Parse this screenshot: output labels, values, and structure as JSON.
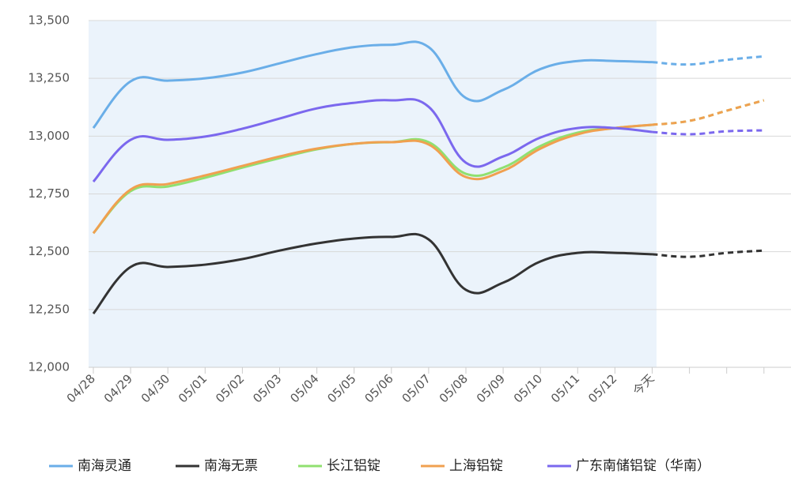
{
  "chart_data": {
    "type": "line",
    "categories": [
      "04/28",
      "04/29",
      "04/30",
      "05/01",
      "05/02",
      "05/03",
      "05/04",
      "05/05",
      "05/06",
      "05/07",
      "05/08",
      "05/09",
      "05/10",
      "05/11",
      "05/12",
      "今天",
      null,
      null,
      null
    ],
    "dashed_from_index": 15,
    "series": [
      {
        "name": "南海灵通",
        "color": "#6aaee8",
        "values": [
          13035,
          13237,
          13240,
          13250,
          13275,
          13315,
          13355,
          13385,
          13395,
          13385,
          13165,
          13200,
          13290,
          13325,
          13325,
          13320,
          13310,
          13330,
          13345
        ]
      },
      {
        "name": "南海无票",
        "color": "#333333",
        "values": [
          12232,
          12434,
          12434,
          12444,
          12468,
          12505,
          12536,
          12557,
          12564,
          12553,
          12335,
          12366,
          12458,
          12495,
          12495,
          12489,
          12478,
          12495,
          12505
        ]
      },
      {
        "name": "长江铝锭",
        "color": "#90e070",
        "values": [
          12580,
          12762,
          12782,
          12820,
          12864,
          12905,
          12943,
          12967,
          12974,
          12974,
          12837,
          12864,
          12957,
          13015,
          13035,
          13049,
          13066,
          13110,
          13155
        ]
      },
      {
        "name": "上海铝锭",
        "color": "#f0a050",
        "values": [
          12580,
          12769,
          12793,
          12830,
          12871,
          12912,
          12946,
          12967,
          12974,
          12964,
          12823,
          12850,
          12946,
          13008,
          13035,
          13049,
          13066,
          13110,
          13155
        ]
      },
      {
        "name": "广东南储铝锭（华南）",
        "color": "#7b68ee",
        "values": [
          12803,
          12984,
          12984,
          12998,
          13032,
          13076,
          13120,
          13144,
          13155,
          13127,
          12885,
          12912,
          12994,
          13035,
          13035,
          13018,
          13008,
          13021,
          13025
        ]
      }
    ],
    "ylim": [
      12000,
      13500
    ],
    "yticks": [
      {
        "value": 12000,
        "label": "12,000"
      },
      {
        "value": 12250,
        "label": "12,250"
      },
      {
        "value": 12500,
        "label": "12,500"
      },
      {
        "value": 12750,
        "label": "12,750"
      },
      {
        "value": 13000,
        "label": "13,000"
      },
      {
        "value": 13250,
        "label": "13,250"
      },
      {
        "value": 13500,
        "label": "13,500"
      }
    ],
    "grid": true
  }
}
